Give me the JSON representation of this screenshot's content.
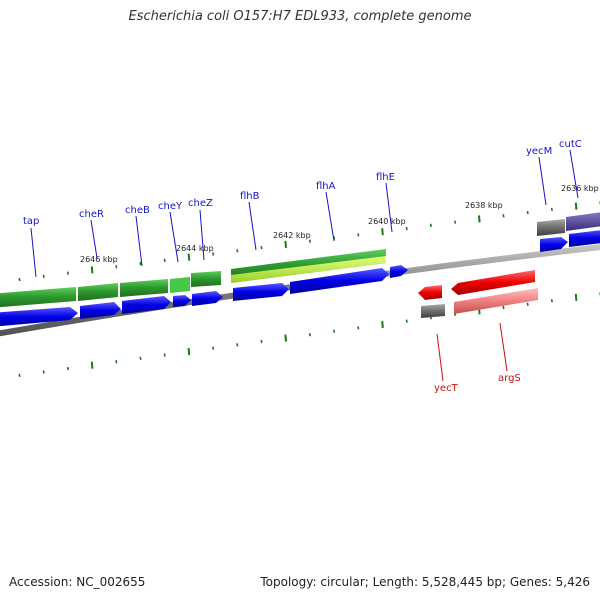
{
  "title": "Escherichia coli O157:H7 EDL933, complete genome",
  "footer": {
    "accession": "Accession: NC_002655",
    "summary": "Topology: circular; Length: 5,528,445 bp; Genes: 5,426"
  },
  "colors": {
    "forward_cds": "#0000ee",
    "forward_gene_green": "#2e9b2e",
    "forward_gene_light": "#b6f23a",
    "reverse_cds": "#ee0000",
    "reverse_gene_pink": "#f08080",
    "gray_feature": "#6e6e6e",
    "purple_feature": "#4a3d8c",
    "backbone": "#8a8a8a",
    "tick": "#1a7a1a",
    "forward_label": "#1414c8",
    "reverse_label": "#cc1010"
  },
  "kbp_labels": [
    "2646 kbp",
    "2644 kbp",
    "2642 kbp",
    "2640 kbp",
    "2638 kbp",
    "2636 kbp"
  ],
  "forward_gene_labels": [
    "tap",
    "cheR",
    "cheB",
    "cheY",
    "cheZ",
    "flhB",
    "flhA",
    "flhE",
    "yecM",
    "cutC"
  ],
  "reverse_gene_labels": [
    "yecT",
    "argS"
  ]
}
